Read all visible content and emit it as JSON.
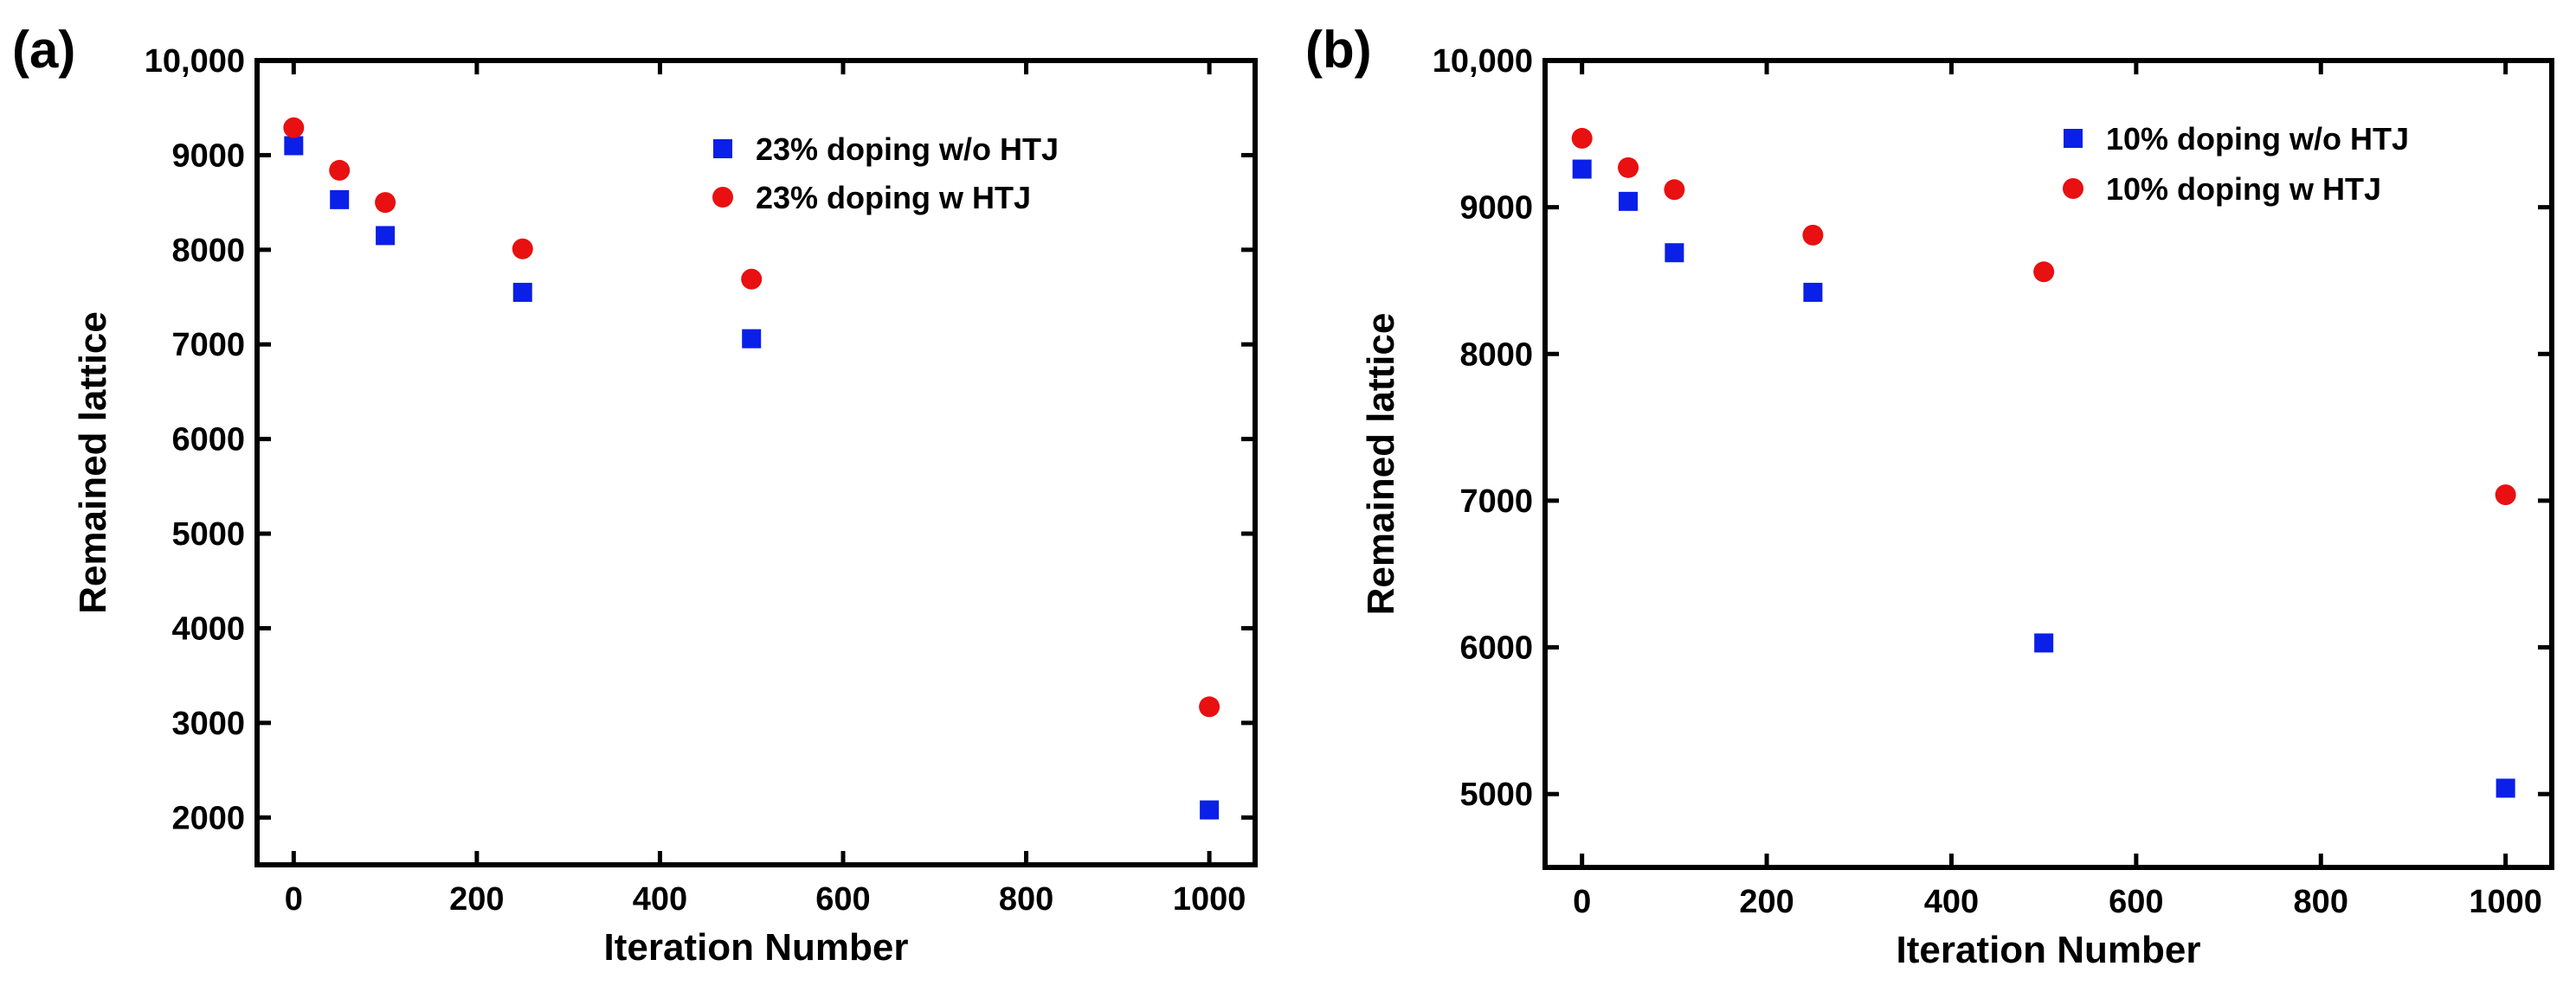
{
  "chart_data": [
    {
      "panel": "(a)",
      "type": "scatter",
      "xlabel": "Iteration Number",
      "ylabel": "Remained lattice",
      "xlim": [
        -40,
        1050
      ],
      "ylim": [
        1500,
        10000
      ],
      "xticks": [
        0,
        200,
        400,
        600,
        800,
        1000
      ],
      "yticks": [
        2000,
        3000,
        4000,
        5000,
        6000,
        7000,
        8000,
        9000,
        10000
      ],
      "ytick_labels": [
        "2000",
        "3000",
        "4000",
        "5000",
        "6000",
        "7000",
        "8000",
        "9000",
        "10,000"
      ],
      "legend_position": "top-right",
      "series": [
        {
          "name": "23% doping w/o HTJ",
          "marker": "square",
          "color": "#0a1fe8",
          "x": [
            0,
            50,
            100,
            250,
            500,
            1000
          ],
          "y": [
            9100,
            8530,
            8150,
            7550,
            7060,
            2080
          ]
        },
        {
          "name": "23% doping w HTJ",
          "marker": "circle",
          "color": "#e81010",
          "x": [
            0,
            50,
            100,
            250,
            500,
            1000
          ],
          "y": [
            9290,
            8840,
            8500,
            8010,
            7690,
            3170
          ]
        }
      ]
    },
    {
      "panel": "(b)",
      "type": "scatter",
      "xlabel": "Iteration Number",
      "ylabel": "Remained lattice",
      "xlim": [
        -40,
        1050
      ],
      "ylim": [
        4500,
        10000
      ],
      "xticks": [
        0,
        200,
        400,
        600,
        800,
        1000
      ],
      "yticks": [
        5000,
        6000,
        7000,
        8000,
        9000,
        10000
      ],
      "ytick_labels": [
        "5000",
        "6000",
        "7000",
        "8000",
        "9000",
        "10,000"
      ],
      "legend_position": "top-right",
      "series": [
        {
          "name": "10% doping w/o HTJ",
          "marker": "square",
          "color": "#0a1fe8",
          "x": [
            0,
            50,
            100,
            250,
            500,
            1000
          ],
          "y": [
            9260,
            9040,
            8690,
            8420,
            6030,
            5040
          ]
        },
        {
          "name": " 10% doping w HTJ",
          "marker": "circle",
          "color": "#e81010",
          "x": [
            0,
            50,
            100,
            250,
            500,
            1000
          ],
          "y": [
            9470,
            9270,
            9120,
            8810,
            8560,
            7040
          ]
        }
      ]
    }
  ]
}
